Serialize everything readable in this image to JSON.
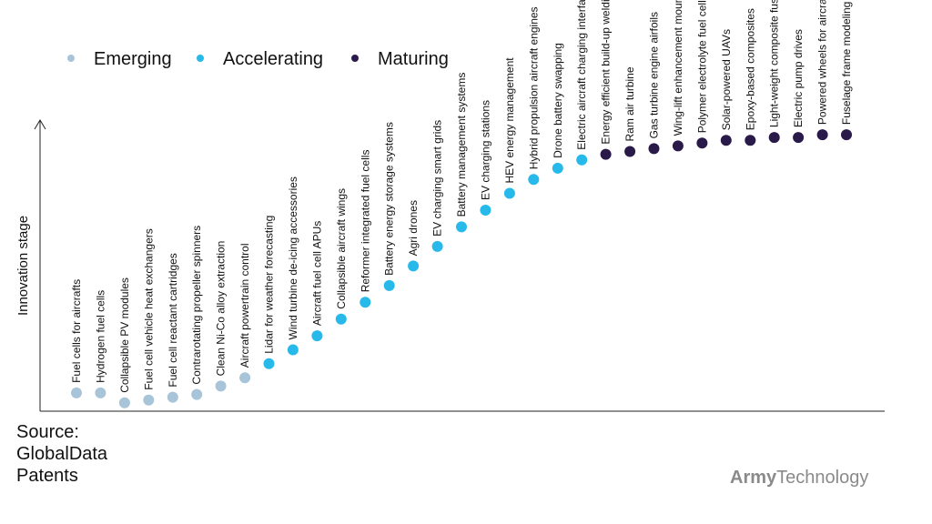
{
  "chart_data": {
    "type": "scatter",
    "ylabel": "Innovation stage",
    "legend": {
      "placement": "top-left",
      "entries": [
        {
          "name": "Emerging",
          "color": "#a7c4d8"
        },
        {
          "name": "Accelerating",
          "color": "#27b9ea"
        },
        {
          "name": "Maturing",
          "color": "#2a1a4a"
        }
      ]
    },
    "ylim": [
      0,
      100
    ],
    "grid": false,
    "points": [
      {
        "label": "Fuel cells for aircrafts",
        "stage": "Emerging",
        "value": 2
      },
      {
        "label": "Hydrogen fuel cells",
        "stage": "Emerging",
        "value": 2
      },
      {
        "label": "Collapsible PV modules",
        "stage": "Emerging",
        "value": 3
      },
      {
        "label": "Fuel cell vehicle heat exchangers",
        "stage": "Emerging",
        "value": 4
      },
      {
        "label": "Fuel cell reactant cartridges",
        "stage": "Emerging",
        "value": 5
      },
      {
        "label": "Contrarotating propeller spinners",
        "stage": "Emerging",
        "value": 6
      },
      {
        "label": "Clean Ni-Co alloy extraction",
        "stage": "Emerging",
        "value": 9
      },
      {
        "label": "Aircraft powertrain control",
        "stage": "Emerging",
        "value": 12
      },
      {
        "label": "Lidar for weather forecasting",
        "stage": "Accelerating",
        "value": 17
      },
      {
        "label": "Wind turbine de-icing accessories",
        "stage": "Accelerating",
        "value": 22
      },
      {
        "label": "Aircraft fuel cell APUs",
        "stage": "Accelerating",
        "value": 27
      },
      {
        "label": "Collapsible aircraft wings",
        "stage": "Accelerating",
        "value": 33
      },
      {
        "label": "Reformer integrated fuel cells",
        "stage": "Accelerating",
        "value": 39
      },
      {
        "label": "Battery energy storage systems",
        "stage": "Accelerating",
        "value": 45
      },
      {
        "label": "Agri drones",
        "stage": "Accelerating",
        "value": 52
      },
      {
        "label": "EV charging smart grids",
        "stage": "Accelerating",
        "value": 59
      },
      {
        "label": "Battery management systems",
        "stage": "Accelerating",
        "value": 66
      },
      {
        "label": "EV charging stations",
        "stage": "Accelerating",
        "value": 72
      },
      {
        "label": "HEV energy management",
        "stage": "Accelerating",
        "value": 78
      },
      {
        "label": "Hybrid propulsion aircraft engines",
        "stage": "Accelerating",
        "value": 83
      },
      {
        "label": "Drone battery swapping",
        "stage": "Accelerating",
        "value": 87
      },
      {
        "label": "Electric aircraft charging interfaces",
        "stage": "Accelerating",
        "value": 90
      },
      {
        "label": "Energy efficient build-up welding",
        "stage": "Maturing",
        "value": 92
      },
      {
        "label": "Ram air turbine",
        "stage": "Maturing",
        "value": 93
      },
      {
        "label": "Gas turbine engine airfoils",
        "stage": "Maturing",
        "value": 94
      },
      {
        "label": "Wing-lift enhancement mountings",
        "stage": "Maturing",
        "value": 95
      },
      {
        "label": "Polymer electrolyte fuel cells",
        "stage": "Maturing",
        "value": 96
      },
      {
        "label": "Solar-powered UAVs",
        "stage": "Maturing",
        "value": 97
      },
      {
        "label": "Epoxy-based composites",
        "stage": "Maturing",
        "value": 97
      },
      {
        "label": "Light-weight composite fuselage",
        "stage": "Maturing",
        "value": 98
      },
      {
        "label": "Electric pump drives",
        "stage": "Maturing",
        "value": 98
      },
      {
        "label": "Powered wheels for aircraft landing",
        "stage": "Maturing",
        "value": 99
      },
      {
        "label": "Fuselage frame modeling",
        "stage": "Maturing",
        "value": 99
      }
    ]
  },
  "source": {
    "line1": "Source:",
    "line2": "GlobalData",
    "line3": "Patents"
  },
  "brand": {
    "part1": "Army",
    "part2": "Technology"
  }
}
